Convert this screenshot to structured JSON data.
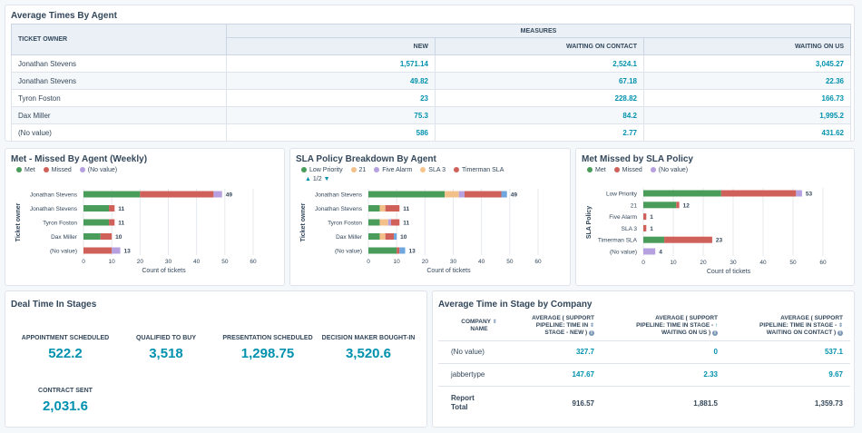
{
  "avg_times": {
    "title": "Average Times By Agent",
    "col_owner": "TICKET OWNER",
    "col_group": "MEASURES",
    "cols": [
      "NEW",
      "WAITING ON CONTACT",
      "WAITING ON US"
    ],
    "rows": [
      {
        "name": "Jonathan Stevens",
        "v": [
          "1,571.14",
          "2,524.1",
          "3,045.27"
        ]
      },
      {
        "name": "Jonathan Stevens",
        "v": [
          "49.82",
          "67.18",
          "22.36"
        ]
      },
      {
        "name": "Tyron Foston",
        "v": [
          "23",
          "228.82",
          "166.73"
        ]
      },
      {
        "name": "Dax Miller",
        "v": [
          "75.3",
          "84.2",
          "1,995.2"
        ]
      },
      {
        "name": "(No value)",
        "v": [
          "586",
          "2.77",
          "431.62"
        ]
      }
    ]
  },
  "met_missed": {
    "title": "Met - Missed By Agent (Weekly)",
    "legend": [
      {
        "name": "Met",
        "color": "#4a9c5a"
      },
      {
        "name": "Missed",
        "color": "#d0615a"
      },
      {
        "name": "(No value)",
        "color": "#b6a0e0"
      }
    ]
  },
  "sla_breakdown": {
    "title": "SLA Policy Breakdown By Agent",
    "legend": [
      {
        "name": "Low Priority",
        "color": "#4a9c5a"
      },
      {
        "name": "21",
        "color": "#f3c08a"
      },
      {
        "name": "Five Alarm",
        "color": "#b6a0e0"
      },
      {
        "name": "SLA 3",
        "color": "#f5c48b"
      },
      {
        "name": "Timerman SLA",
        "color": "#d0615a"
      }
    ],
    "pager": "1/2"
  },
  "met_sla": {
    "title": "Met Missed by SLA Policy",
    "legend": [
      {
        "name": "Met",
        "color": "#4a9c5a"
      },
      {
        "name": "Missed",
        "color": "#d0615a"
      },
      {
        "name": "(No value)",
        "color": "#b6a0e0"
      }
    ]
  },
  "chart_data": [
    {
      "type": "bar",
      "orientation": "horizontal",
      "stacked": true,
      "title": "Met - Missed By Agent (Weekly)",
      "ylabel": "Ticket owner",
      "xlabel": "Count of tickets",
      "xlim": [
        0,
        60
      ],
      "xticks": [
        "0",
        "10",
        "20",
        "30",
        "40",
        "50",
        "60"
      ],
      "categories": [
        "Jonathan Stevens",
        "Jonathan Stevens",
        "Tyron Foston",
        "Dax Miller",
        "(No value)"
      ],
      "totals": [
        "49",
        "11",
        "11",
        "10",
        "13"
      ],
      "series": [
        {
          "name": "Met",
          "color": "#4a9c5a",
          "values": [
            20,
            9,
            9,
            6,
            0
          ]
        },
        {
          "name": "Missed",
          "color": "#d0615a",
          "values": [
            26,
            2,
            2,
            4,
            10
          ]
        },
        {
          "name": "(No value)",
          "color": "#b6a0e0",
          "values": [
            3,
            0,
            0,
            0,
            3
          ]
        }
      ]
    },
    {
      "type": "bar",
      "orientation": "horizontal",
      "stacked": true,
      "title": "SLA Policy Breakdown By Agent",
      "ylabel": "Ticket owner",
      "xlabel": "Count of tickets",
      "xlim": [
        0,
        60
      ],
      "xticks": [
        "0",
        "10",
        "20",
        "30",
        "40",
        "50",
        "60"
      ],
      "categories": [
        "Jonathan Stevens",
        "Jonathan Stevens",
        "Tyron Foston",
        "Dax Miller",
        "(No value)"
      ],
      "totals": [
        "49",
        "11",
        "11",
        "10",
        "13"
      ],
      "series": [
        {
          "name": "Low Priority",
          "color": "#4a9c5a",
          "values": [
            27,
            4,
            4,
            4,
            10
          ]
        },
        {
          "name": "21",
          "color": "#f3c08a",
          "values": [
            5,
            2,
            3,
            2,
            0
          ]
        },
        {
          "name": "Five Alarm",
          "color": "#b6a0e0",
          "values": [
            2,
            0,
            1,
            0,
            0
          ]
        },
        {
          "name": "SLA 3",
          "color": "#f5c48b",
          "values": [
            0,
            0,
            0,
            0,
            0
          ]
        },
        {
          "name": "Timerman SLA",
          "color": "#d0615a",
          "values": [
            13,
            5,
            3,
            3,
            1
          ]
        },
        {
          "name": "(No value)",
          "color": "#6fa6dd",
          "values": [
            2,
            0,
            0,
            1,
            2
          ]
        }
      ]
    },
    {
      "type": "bar",
      "orientation": "horizontal",
      "stacked": true,
      "title": "Met Missed by SLA Policy",
      "ylabel": "SLA Policy",
      "xlabel": "Count of tickets",
      "xlim": [
        0,
        60
      ],
      "xticks": [
        "0",
        "10",
        "20",
        "30",
        "40",
        "50",
        "60"
      ],
      "categories": [
        "Low Priority",
        "21",
        "Five Alarm",
        "SLA 3",
        "Timerman SLA",
        "(No value)"
      ],
      "totals": [
        "53",
        "12",
        "1",
        "1",
        "23",
        "4"
      ],
      "series": [
        {
          "name": "Met",
          "color": "#4a9c5a",
          "values": [
            26,
            11,
            0,
            0,
            7,
            0
          ]
        },
        {
          "name": "Missed",
          "color": "#d0615a",
          "values": [
            25,
            1,
            1,
            1,
            16,
            0
          ]
        },
        {
          "name": "(No value)",
          "color": "#b6a0e0",
          "values": [
            2,
            0,
            0,
            0,
            0,
            4
          ]
        }
      ]
    }
  ],
  "deal_time": {
    "title": "Deal Time In Stages",
    "kpis": [
      {
        "label": "APPOINTMENT SCHEDULED",
        "value": "522.2"
      },
      {
        "label": "QUALIFIED TO BUY",
        "value": "3,518"
      },
      {
        "label": "PRESENTATION SCHEDULED",
        "value": "1,298.75"
      },
      {
        "label": "DECISION MAKER BOUGHT-IN",
        "value": "3,520.6"
      },
      {
        "label": "CONTRACT SENT",
        "value": "2,031.6"
      }
    ]
  },
  "company": {
    "title": "Average Time in Stage by Company",
    "col_name_1": "COMPANY",
    "col_name_2": "NAME",
    "cols": [
      [
        "AVERAGE ( SUPPORT",
        "PIPELINE: TIME IN",
        "STAGE - NEW )"
      ],
      [
        "AVERAGE ( SUPPORT",
        "PIPELINE: TIME IN STAGE -",
        "WAITING ON US )"
      ],
      [
        "AVERAGE ( SUPPORT",
        "PIPELINE: TIME IN STAGE -",
        "WAITING ON CONTACT )"
      ]
    ],
    "rows": [
      {
        "name": "(No value)",
        "v": [
          "327.7",
          "0",
          "537.1"
        ]
      },
      {
        "name": "jabbertype",
        "v": [
          "147.67",
          "2.33",
          "9.67"
        ]
      }
    ],
    "total_label_1": "Report",
    "total_label_2": "Total",
    "total": [
      "916.57",
      "1,881.5",
      "1,359.73"
    ]
  }
}
